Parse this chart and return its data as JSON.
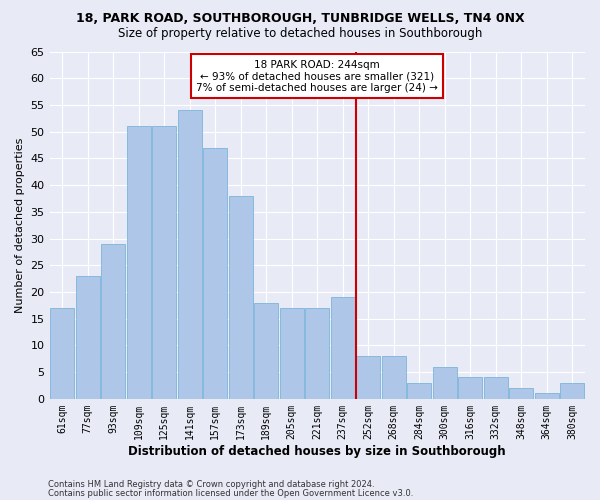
{
  "title1": "18, PARK ROAD, SOUTHBOROUGH, TUNBRIDGE WELLS, TN4 0NX",
  "title2": "Size of property relative to detached houses in Southborough",
  "xlabel": "Distribution of detached houses by size in Southborough",
  "ylabel": "Number of detached properties",
  "footer1": "Contains HM Land Registry data © Crown copyright and database right 2024.",
  "footer2": "Contains public sector information licensed under the Open Government Licence v3.0.",
  "bar_labels": [
    "61sqm",
    "77sqm",
    "93sqm",
    "109sqm",
    "125sqm",
    "141sqm",
    "157sqm",
    "173sqm",
    "189sqm",
    "205sqm",
    "221sqm",
    "237sqm",
    "252sqm",
    "268sqm",
    "284sqm",
    "300sqm",
    "316sqm",
    "332sqm",
    "348sqm",
    "364sqm",
    "380sqm"
  ],
  "bar_heights": [
    17,
    23,
    29,
    51,
    51,
    54,
    47,
    38,
    18,
    17,
    17,
    19,
    8,
    8,
    3,
    6,
    4,
    4,
    2,
    1,
    3
  ],
  "bar_color": "#aec6e8",
  "bar_edgecolor": "#6baed6",
  "background_color": "#e8eaf6",
  "grid_color": "#ffffff",
  "vline_color": "#cc0000",
  "annotation_title": "18 PARK ROAD: 244sqm",
  "annotation_line1": "← 93% of detached houses are smaller (321)",
  "annotation_line2": "7% of semi-detached houses are larger (24) →",
  "annotation_box_edgecolor": "#cc0000",
  "ylim": [
    0,
    65
  ],
  "yticks": [
    0,
    5,
    10,
    15,
    20,
    25,
    30,
    35,
    40,
    45,
    50,
    55,
    60,
    65
  ]
}
